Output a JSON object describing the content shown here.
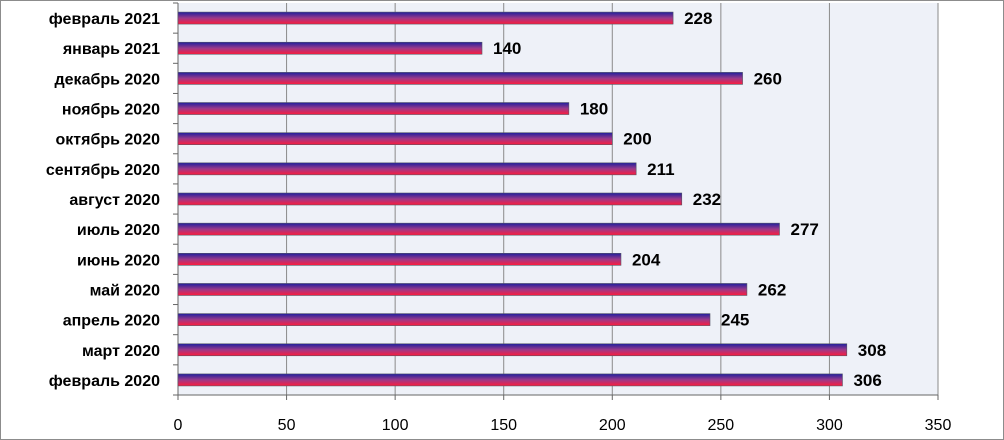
{
  "chart_data": {
    "type": "bar",
    "orientation": "horizontal",
    "categories": [
      "февраль 2021",
      "январь 2021",
      "декабрь 2020",
      "ноябрь 2020",
      "октябрь 2020",
      "сентябрь 2020",
      "август 2020",
      "июль 2020",
      "июнь 2020",
      "май 2020",
      "апрель 2020",
      "март 2020",
      "февраль 2020"
    ],
    "values": [
      228,
      140,
      260,
      180,
      200,
      211,
      232,
      277,
      204,
      262,
      245,
      308,
      306
    ],
    "data_labels": [
      "228",
      "140",
      "260",
      "180",
      "200",
      "211",
      "232",
      "277",
      "204",
      "262",
      "245",
      "308",
      "306"
    ],
    "xlim": [
      0,
      350
    ],
    "x_ticks": [
      "0",
      "50",
      "100",
      "150",
      "200",
      "250",
      "300",
      "350"
    ],
    "x_tick_values": [
      0,
      50,
      100,
      150,
      200,
      250,
      300,
      350
    ],
    "grid": "vertical",
    "legend": "none",
    "title": "",
    "xlabel": "",
    "ylabel": "",
    "colors": {
      "plot_background": "#eef1f8",
      "gridline": "#8a8a8a",
      "bar_top": "#1f1f9e",
      "bar_mid": "#9b3a8a",
      "bar_bottom": "#ff1a3c"
    }
  }
}
